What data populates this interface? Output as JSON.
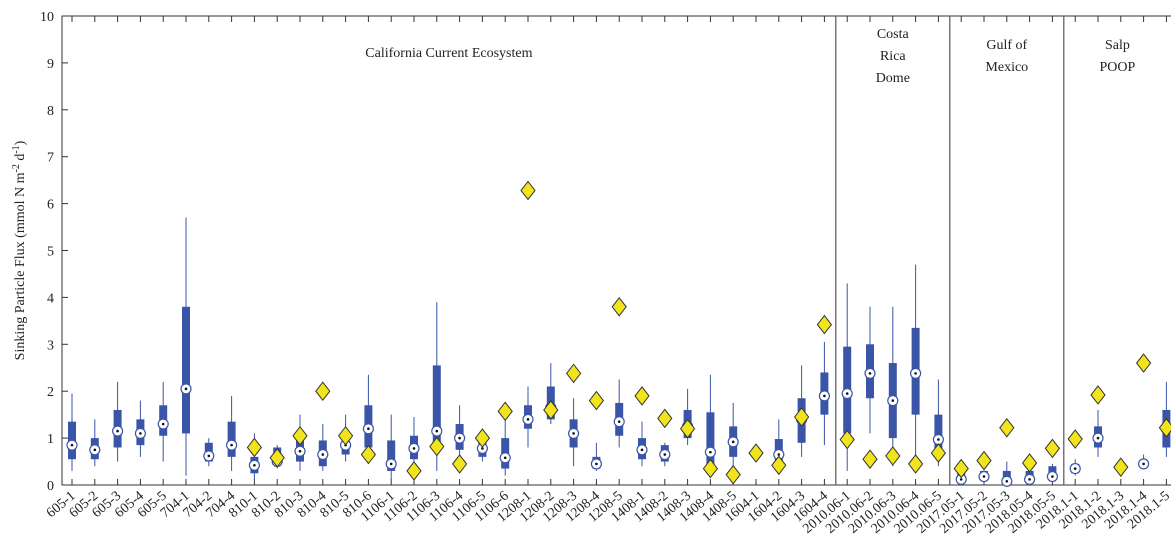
{
  "chart_data": {
    "type": "box",
    "ylabel_parts": [
      "Sinking Particle Flux (mmol N m",
      "-2",
      " d",
      "-1",
      ")"
    ],
    "groups": [
      {
        "label": [
          "California Current Ecosystem"
        ]
      },
      {
        "label": [
          "Costa",
          "Rica",
          "Dome"
        ]
      },
      {
        "label": [
          "Gulf of",
          "Mexico"
        ]
      },
      {
        "label": [
          "Salp",
          "POOP"
        ]
      }
    ],
    "categories": [
      "605-1",
      "605-2",
      "605-3",
      "605-4",
      "605-5",
      "704-1",
      "704-2",
      "704-4",
      "810-1",
      "810-2",
      "810-3",
      "810-4",
      "810-5",
      "810-6",
      "1106-1",
      "1106-2",
      "1106-3",
      "1106-4",
      "1106-5",
      "1106-6",
      "1208-1",
      "1208-2",
      "1208-3",
      "1208-4",
      "1208-5",
      "1408-1",
      "1408-2",
      "1408-3",
      "1408-4",
      "1408-5",
      "1604-1",
      "1604-2",
      "1604-3",
      "1604-4",
      "2010.06-1",
      "2010.06-2",
      "2010.06-3",
      "2010.06-4",
      "2010.06-5",
      "2017.05-1",
      "2017.05-2",
      "2017.05-3",
      "2018.05-4",
      "2018.05-5",
      "2018.1-1",
      "2018.1-2",
      "2018.1-3",
      "2018.1-4",
      "2018.1-5"
    ],
    "whisker_low": [
      0.3,
      0.4,
      0.5,
      0.6,
      0.5,
      0.2,
      0.4,
      0.3,
      0.1,
      0.35,
      0.3,
      0.3,
      0.5,
      0.5,
      0.1,
      0.3,
      0.3,
      0.4,
      0.5,
      0.2,
      0.8,
      1.3,
      0.4,
      0.3,
      0.8,
      0.4,
      0.4,
      0.85,
      0.25,
      0.4,
      null,
      0.35,
      0.6,
      0.85,
      0.3,
      1.1,
      0.4,
      0.5,
      0.4,
      0.03,
      0.05,
      0.0,
      0.05,
      0.08,
      0.2,
      0.6,
      null,
      0.35,
      0.6
    ],
    "q1": [
      0.55,
      0.55,
      0.8,
      0.85,
      1.05,
      1.1,
      0.5,
      0.6,
      0.25,
      0.45,
      0.5,
      0.4,
      0.65,
      0.8,
      0.3,
      0.55,
      0.9,
      0.75,
      0.6,
      0.35,
      1.2,
      1.4,
      0.8,
      0.35,
      1.05,
      0.55,
      0.5,
      1.0,
      0.4,
      0.6,
      null,
      0.5,
      0.9,
      1.5,
      1.1,
      1.85,
      1.0,
      1.5,
      0.65,
      0.08,
      0.1,
      0.05,
      0.1,
      0.12,
      0.25,
      0.8,
      null,
      0.4,
      0.8
    ],
    "median": [
      0.85,
      0.75,
      1.15,
      1.1,
      1.3,
      2.05,
      0.62,
      0.85,
      0.42,
      0.5,
      0.72,
      0.65,
      0.85,
      1.2,
      0.45,
      0.78,
      1.15,
      1.0,
      0.78,
      0.58,
      1.4,
      1.65,
      1.1,
      0.45,
      1.35,
      0.75,
      0.65,
      1.25,
      0.7,
      0.92,
      null,
      0.65,
      1.4,
      1.9,
      1.95,
      2.38,
      1.8,
      2.38,
      0.97,
      0.12,
      0.18,
      0.08,
      0.12,
      0.18,
      0.35,
      1.0,
      null,
      0.45,
      1.2
    ],
    "q3": [
      1.35,
      1.0,
      1.6,
      1.4,
      1.7,
      3.8,
      0.9,
      1.35,
      0.6,
      0.8,
      1.0,
      0.95,
      1.05,
      1.7,
      0.95,
      1.05,
      2.55,
      1.3,
      0.9,
      1.0,
      1.7,
      2.1,
      1.4,
      0.6,
      1.75,
      1.0,
      0.85,
      1.6,
      1.55,
      1.25,
      null,
      0.98,
      1.85,
      2.4,
      2.95,
      3.0,
      2.6,
      3.35,
      1.5,
      0.25,
      0.3,
      0.3,
      0.3,
      0.4,
      0.45,
      1.25,
      null,
      0.5,
      1.6
    ],
    "whisker_high": [
      1.95,
      1.4,
      2.2,
      1.8,
      2.2,
      5.7,
      1.0,
      1.9,
      1.1,
      0.85,
      1.5,
      1.3,
      1.5,
      2.35,
      1.5,
      1.45,
      3.9,
      1.7,
      1.2,
      1.6,
      2.1,
      2.6,
      1.85,
      0.9,
      2.25,
      1.35,
      0.9,
      2.05,
      2.35,
      1.75,
      null,
      1.4,
      2.55,
      3.05,
      4.3,
      3.8,
      3.8,
      4.7,
      2.25,
      0.3,
      0.4,
      0.5,
      0.45,
      0.45,
      0.55,
      1.6,
      null,
      0.65,
      2.2
    ],
    "markers": [
      null,
      null,
      null,
      null,
      null,
      null,
      null,
      null,
      0.8,
      0.58,
      1.05,
      2.0,
      1.05,
      0.65,
      null,
      0.3,
      0.82,
      0.45,
      1.0,
      1.57,
      6.28,
      1.6,
      2.38,
      1.8,
      3.8,
      1.9,
      1.42,
      1.2,
      0.35,
      0.22,
      0.68,
      0.42,
      1.45,
      3.42,
      0.97,
      0.55,
      0.62,
      0.45,
      0.68,
      0.35,
      0.52,
      1.22,
      0.47,
      0.78,
      0.98,
      1.92,
      0.38,
      2.6,
      1.22
    ],
    "box_color": "#3a55a8",
    "marker_color": "#f2e41c",
    "ylim": [
      0,
      10
    ],
    "yticks": [
      0,
      1,
      2,
      3,
      4,
      5,
      6,
      7,
      8,
      9,
      10
    ]
  }
}
